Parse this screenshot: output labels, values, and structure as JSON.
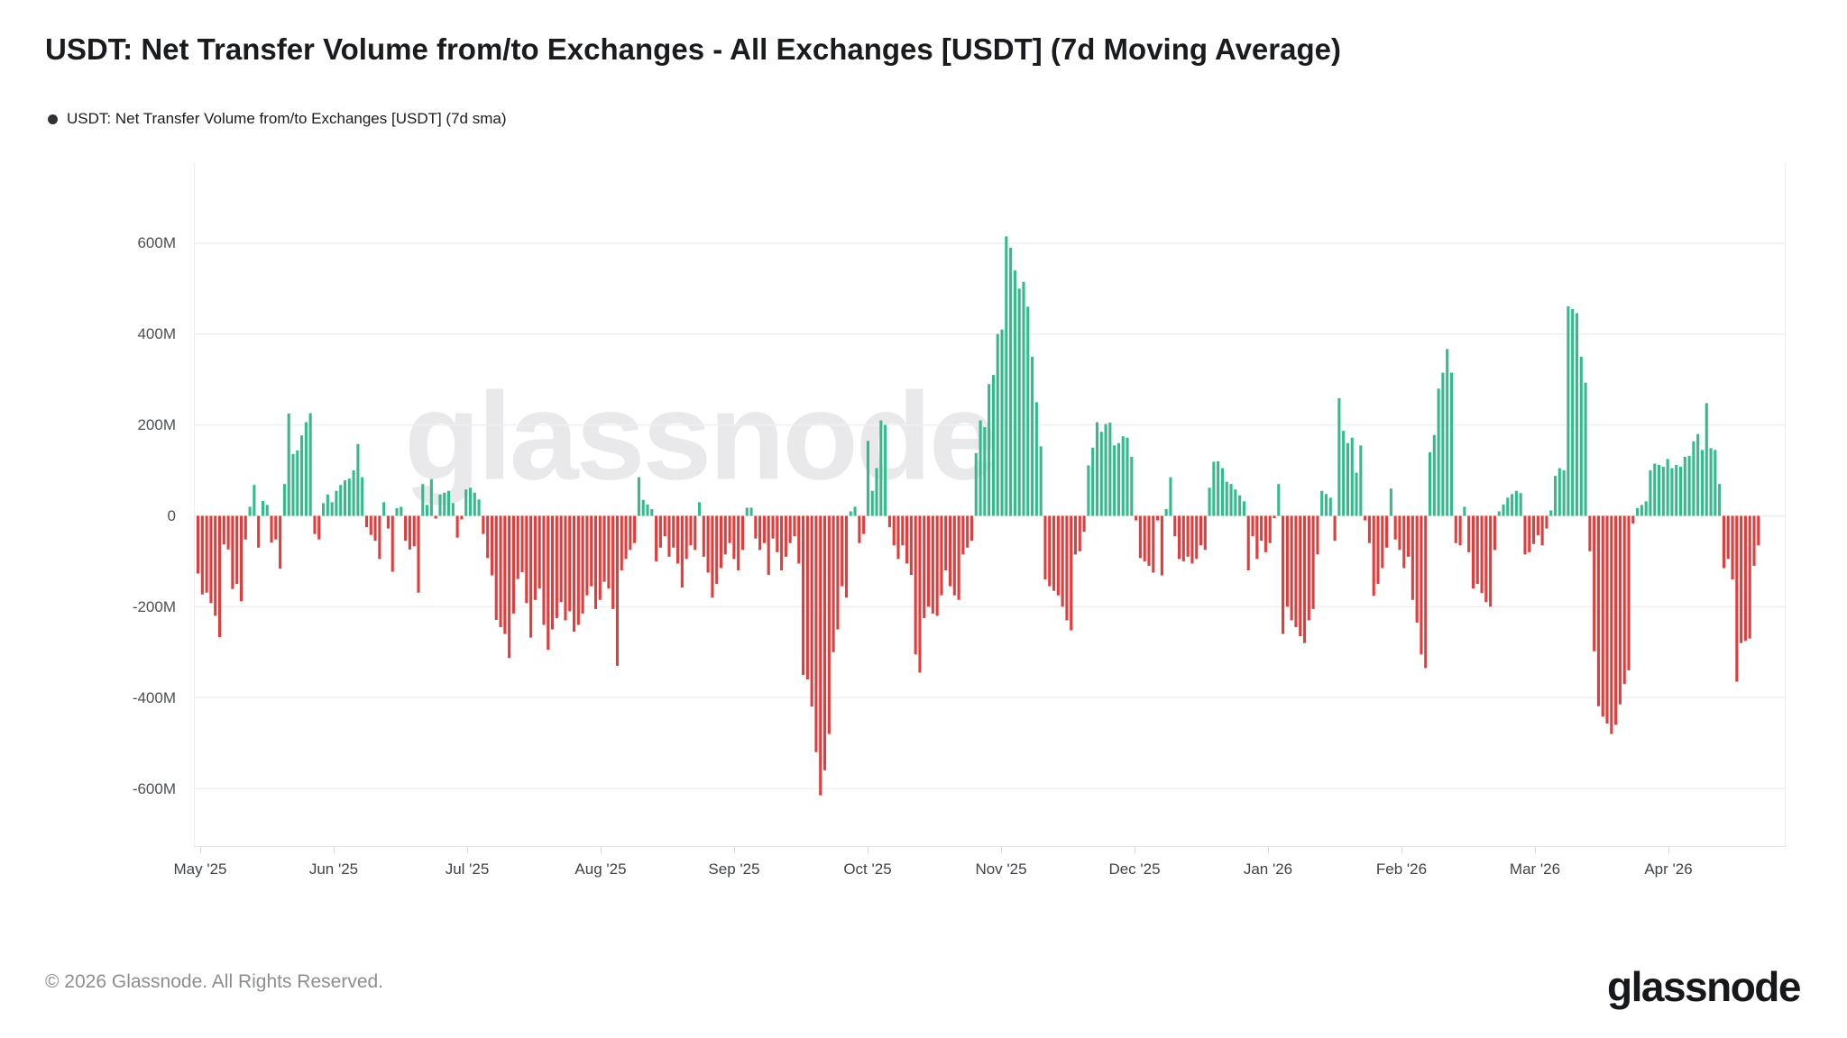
{
  "header": {
    "title": "USDT: Net Transfer Volume from/to Exchanges - All Exchanges [USDT] (7d Moving Average)",
    "legend": {
      "label": "USDT: Net Transfer Volume from/to Exchanges [USDT] (7d sma)",
      "bullet_color": "#2f3136"
    }
  },
  "watermark": "glassnode",
  "footer": {
    "copyright": "© 2026 Glassnode. All Rights Reserved.",
    "brand": "glassnode"
  },
  "chart_data": {
    "type": "bar",
    "title": "USDT: Net Transfer Volume from/to Exchanges - All Exchanges [USDT] (7d Moving Average)",
    "series_name": "USDT: Net Transfer Volume from/to Exchanges [USDT] (7d sma)",
    "value_unit": "M USDT",
    "grid": true,
    "legend_position": "top-left",
    "y_axis": {
      "tick_labels": [
        "600M",
        "400M",
        "200M",
        "0",
        "-200M",
        "-400M",
        "-600M"
      ],
      "tick_values": [
        600,
        400,
        200,
        0,
        -200,
        -400,
        -600
      ],
      "min": -700,
      "max": 700
    },
    "x_axis": {
      "tick_labels": [
        "May '25",
        "Jun '25",
        "Jul '25",
        "Aug '25",
        "Sep '25",
        "Oct '25",
        "Nov '25",
        "Dec '25",
        "Jan '26",
        "Feb '26",
        "Mar '26",
        "Apr '26"
      ]
    },
    "colors": {
      "positive": "#34ba8c",
      "negative": "#e23c3c"
    },
    "values": [
      -127,
      -173,
      -169,
      -192,
      -220,
      -267,
      -63,
      -74,
      -161,
      -150,
      -188,
      -52,
      20,
      68,
      -70,
      33,
      24,
      -59,
      -52,
      -116,
      70,
      225,
      136,
      144,
      177,
      206,
      226,
      -40,
      -52,
      28,
      47,
      30,
      55,
      68,
      78,
      82,
      100,
      158,
      85,
      -25,
      -42,
      -55,
      -95,
      30,
      -28,
      -123,
      17,
      20,
      -55,
      -74,
      -67,
      -169,
      70,
      24,
      81,
      -6,
      47,
      51,
      55,
      28,
      -48,
      -8,
      58,
      62,
      51,
      36,
      -40,
      -93,
      -131,
      -229,
      -245,
      -260,
      -313,
      -215,
      -139,
      -124,
      -192,
      -268,
      -185,
      -160,
      -240,
      -295,
      -250,
      -225,
      -190,
      -230,
      -210,
      -255,
      -240,
      -215,
      -175,
      -155,
      -205,
      -185,
      -145,
      -160,
      -205,
      -330,
      -120,
      -95,
      -75,
      -60,
      85,
      35,
      25,
      15,
      -100,
      -70,
      -45,
      -90,
      -70,
      -105,
      -158,
      -95,
      -65,
      -75,
      30,
      -90,
      -125,
      -180,
      -150,
      -115,
      -85,
      -60,
      -95,
      -120,
      -75,
      18,
      18,
      -50,
      -75,
      -60,
      -130,
      -50,
      -80,
      -120,
      -90,
      -60,
      -45,
      -105,
      -350,
      -360,
      -420,
      -520,
      -615,
      -560,
      -480,
      -300,
      -250,
      -155,
      -180,
      10,
      20,
      -60,
      -40,
      165,
      55,
      105,
      210,
      200,
      -25,
      -65,
      -95,
      -65,
      -105,
      -130,
      -305,
      -345,
      -225,
      -200,
      -215,
      -220,
      -175,
      -120,
      -155,
      -175,
      -185,
      -85,
      -70,
      -55,
      138,
      210,
      195,
      290,
      310,
      400,
      410,
      615,
      590,
      540,
      500,
      515,
      460,
      350,
      250,
      153,
      -140,
      -155,
      -165,
      -175,
      -200,
      -230,
      -252,
      -85,
      -78,
      -35,
      111,
      150,
      206,
      185,
      202,
      205,
      155,
      160,
      175,
      172,
      130,
      -10,
      -93,
      -100,
      -110,
      -125,
      -10,
      -131,
      15,
      85,
      -45,
      -95,
      -100,
      -90,
      -105,
      -95,
      -65,
      -75,
      62,
      119,
      120,
      105,
      75,
      70,
      58,
      45,
      32,
      -120,
      -45,
      -95,
      -55,
      -80,
      -60,
      -5,
      70,
      -260,
      -200,
      -230,
      -245,
      -265,
      -280,
      -230,
      -205,
      -85,
      55,
      48,
      40,
      -55,
      259,
      187,
      160,
      172,
      95,
      155,
      -10,
      -60,
      -176,
      -150,
      -115,
      -70,
      60,
      -52,
      -75,
      -115,
      -90,
      -185,
      -235,
      -305,
      -335,
      140,
      178,
      280,
      315,
      367,
      315,
      -60,
      -65,
      20,
      -80,
      -160,
      -150,
      -170,
      -190,
      -200,
      -75,
      10,
      25,
      40,
      48,
      55,
      50,
      -85,
      -80,
      -62,
      -43,
      -65,
      -28,
      12,
      88,
      105,
      100,
      461,
      455,
      446,
      350,
      293,
      -78,
      -298,
      -419,
      -442,
      -457,
      -480,
      -460,
      -415,
      -370,
      -340,
      -17,
      17,
      24,
      32,
      100,
      115,
      112,
      108,
      125,
      105,
      112,
      108,
      130,
      132,
      164,
      180,
      145,
      248,
      149,
      145,
      70,
      -115,
      -95,
      -140,
      -365,
      -280,
      -275,
      -270,
      -110,
      -65
    ]
  }
}
